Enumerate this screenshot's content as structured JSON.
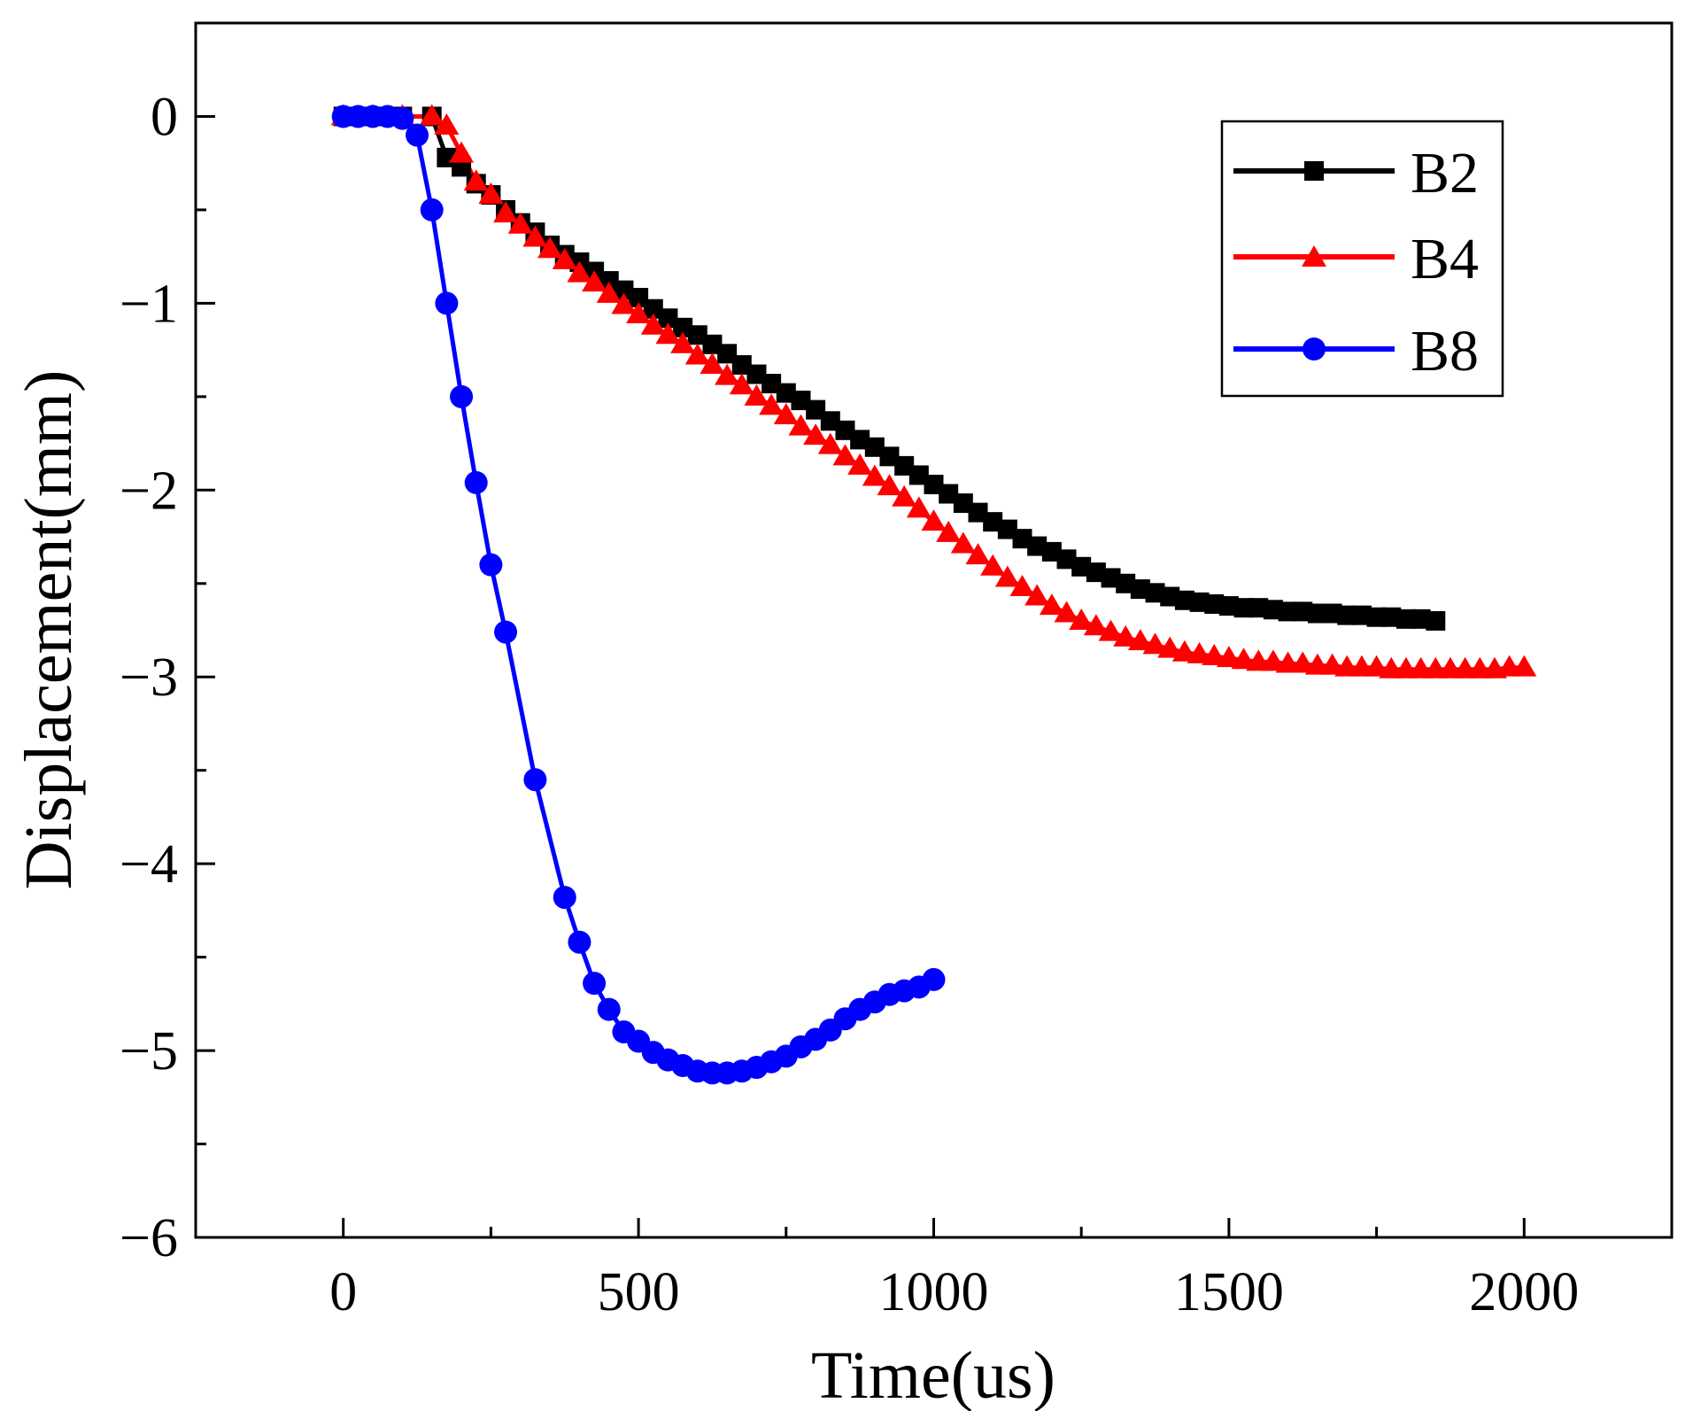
{
  "chart_data": {
    "type": "line",
    "title": "",
    "xlabel": "Time(us)",
    "ylabel": "Displacement(mm)",
    "xlim": [
      -250,
      2250
    ],
    "ylim": [
      -6,
      0.5
    ],
    "xticks": [
      0,
      500,
      1000,
      1500,
      2000
    ],
    "xtick_labels": [
      "0",
      "500",
      "1000",
      "1500",
      "2000"
    ],
    "xminor_step": 250,
    "yticks": [
      0,
      -1,
      -2,
      -3,
      -4,
      -5,
      -6
    ],
    "ytick_labels": [
      "0",
      "−1",
      "−2",
      "−3",
      "−4",
      "−5",
      "−6"
    ],
    "yminor_step": 0.5,
    "grid": false,
    "legend_position": "top-right",
    "series": [
      {
        "name": "B2",
        "color": "#000000",
        "marker": "square",
        "x": [
          0,
          50,
          100,
          150,
          175,
          200,
          225,
          250,
          275,
          300,
          325,
          350,
          375,
          400,
          425,
          450,
          475,
          500,
          525,
          550,
          575,
          600,
          625,
          650,
          675,
          700,
          725,
          750,
          775,
          800,
          825,
          850,
          875,
          900,
          925,
          950,
          975,
          1000,
          1025,
          1050,
          1075,
          1100,
          1125,
          1150,
          1175,
          1200,
          1225,
          1250,
          1275,
          1300,
          1325,
          1350,
          1375,
          1400,
          1425,
          1450,
          1475,
          1500,
          1525,
          1550,
          1575,
          1600,
          1625,
          1650,
          1675,
          1700,
          1725,
          1750,
          1775,
          1800,
          1825,
          1850
        ],
        "y": [
          0,
          0,
          0,
          0,
          -0.22,
          -0.27,
          -0.36,
          -0.42,
          -0.5,
          -0.57,
          -0.62,
          -0.69,
          -0.74,
          -0.78,
          -0.83,
          -0.88,
          -0.93,
          -0.97,
          -1.03,
          -1.08,
          -1.13,
          -1.17,
          -1.22,
          -1.27,
          -1.33,
          -1.38,
          -1.43,
          -1.48,
          -1.52,
          -1.57,
          -1.63,
          -1.68,
          -1.73,
          -1.77,
          -1.82,
          -1.87,
          -1.92,
          -1.97,
          -2.02,
          -2.07,
          -2.12,
          -2.17,
          -2.21,
          -2.26,
          -2.3,
          -2.33,
          -2.37,
          -2.41,
          -2.44,
          -2.47,
          -2.5,
          -2.53,
          -2.55,
          -2.57,
          -2.59,
          -2.6,
          -2.61,
          -2.62,
          -2.63,
          -2.63,
          -2.64,
          -2.65,
          -2.65,
          -2.66,
          -2.66,
          -2.67,
          -2.67,
          -2.68,
          -2.68,
          -2.69,
          -2.69,
          -2.7
        ]
      },
      {
        "name": "B4",
        "color": "#ff0000",
        "marker": "triangle",
        "x": [
          0,
          50,
          100,
          150,
          175,
          200,
          225,
          250,
          275,
          300,
          325,
          350,
          375,
          400,
          425,
          450,
          475,
          500,
          525,
          550,
          575,
          600,
          625,
          650,
          675,
          700,
          725,
          750,
          775,
          800,
          825,
          850,
          875,
          900,
          925,
          950,
          975,
          1000,
          1025,
          1050,
          1075,
          1100,
          1125,
          1150,
          1175,
          1200,
          1225,
          1250,
          1275,
          1300,
          1325,
          1350,
          1375,
          1400,
          1425,
          1450,
          1475,
          1500,
          1525,
          1550,
          1575,
          1600,
          1625,
          1650,
          1675,
          1700,
          1725,
          1750,
          1775,
          1800,
          1825,
          1850,
          1875,
          1900,
          1925,
          1950,
          1975,
          2000
        ],
        "y": [
          0,
          0,
          0,
          0,
          -0.05,
          -0.2,
          -0.35,
          -0.42,
          -0.52,
          -0.58,
          -0.65,
          -0.71,
          -0.77,
          -0.84,
          -0.89,
          -0.95,
          -1.01,
          -1.06,
          -1.12,
          -1.17,
          -1.22,
          -1.28,
          -1.33,
          -1.39,
          -1.44,
          -1.5,
          -1.55,
          -1.6,
          -1.66,
          -1.71,
          -1.76,
          -1.82,
          -1.87,
          -1.93,
          -1.98,
          -2.04,
          -2.1,
          -2.17,
          -2.23,
          -2.29,
          -2.35,
          -2.41,
          -2.47,
          -2.52,
          -2.57,
          -2.62,
          -2.66,
          -2.7,
          -2.73,
          -2.76,
          -2.79,
          -2.81,
          -2.83,
          -2.85,
          -2.87,
          -2.88,
          -2.89,
          -2.9,
          -2.91,
          -2.92,
          -2.92,
          -2.93,
          -2.93,
          -2.94,
          -2.94,
          -2.95,
          -2.95,
          -2.95,
          -2.96,
          -2.96,
          -2.96,
          -2.96,
          -2.96,
          -2.96,
          -2.96,
          -2.96,
          -2.95,
          -2.95
        ]
      },
      {
        "name": "B8",
        "color": "#0000ff",
        "marker": "circle",
        "x": [
          0,
          25,
          50,
          75,
          100,
          125,
          150,
          175,
          200,
          225,
          250,
          275,
          325,
          375,
          400,
          425,
          450,
          475,
          500,
          525,
          550,
          575,
          600,
          625,
          650,
          675,
          700,
          725,
          750,
          775,
          800,
          825,
          850,
          875,
          900,
          925,
          950,
          975,
          1000
        ],
        "y": [
          0,
          0,
          0,
          0,
          -0.01,
          -0.1,
          -0.5,
          -1.0,
          -1.5,
          -1.96,
          -2.4,
          -2.76,
          -3.55,
          -4.18,
          -4.42,
          -4.64,
          -4.78,
          -4.9,
          -4.95,
          -5.01,
          -5.05,
          -5.08,
          -5.11,
          -5.12,
          -5.12,
          -5.11,
          -5.09,
          -5.06,
          -5.03,
          -4.98,
          -4.94,
          -4.89,
          -4.83,
          -4.78,
          -4.74,
          -4.7,
          -4.68,
          -4.66,
          -4.62
        ]
      }
    ]
  }
}
